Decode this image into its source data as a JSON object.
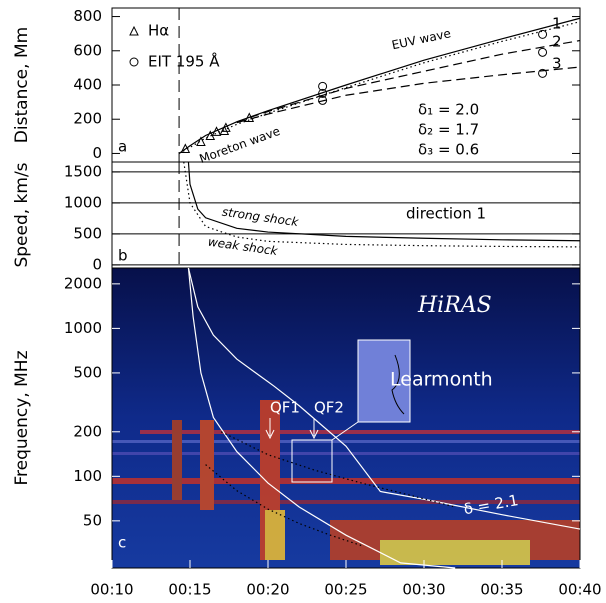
{
  "chart_data": [
    {
      "type": "line",
      "ylabel": "Distance, Mm",
      "xlim": [
        10,
        40
      ],
      "ylim": [
        -50,
        850
      ],
      "yticks": [
        0,
        200,
        400,
        600,
        800
      ],
      "vline": 14.3,
      "series": [
        {
          "name": "Hα",
          "marker": "triangle",
          "color": "#000",
          "x": [
            14.7,
            15.7,
            16.3,
            16.7,
            17.2,
            17.3,
            18.8
          ],
          "values": [
            29,
            70,
            105,
            129,
            134,
            152,
            210
          ]
        },
        {
          "name": "EIT 195 Å",
          "marker": "circle",
          "color": "#000",
          "x": [
            23.5,
            23.5,
            23.5,
            37.6,
            37.6,
            37.6
          ],
          "values": [
            392,
            351,
            310,
            696,
            591,
            468
          ]
        },
        {
          "style": "solid",
          "color": "#000",
          "x": [
            14.3,
            15,
            16,
            18,
            20,
            25,
            30,
            35,
            40
          ],
          "values": [
            0,
            45,
            105,
            185,
            250,
            400,
            545,
            670,
            790
          ]
        },
        {
          "style": "dotted",
          "color": "#000",
          "x": [
            14.3,
            15,
            16,
            18,
            20,
            25,
            30,
            35,
            40
          ],
          "values": [
            0,
            35,
            90,
            170,
            235,
            385,
            530,
            655,
            770
          ]
        },
        {
          "style": "dashed",
          "color": "#000",
          "x": [
            18,
            20,
            25,
            30,
            35,
            40
          ],
          "values": [
            185,
            245,
            380,
            480,
            580,
            660
          ]
        },
        {
          "style": "dashed",
          "color": "#000",
          "x": [
            18,
            20,
            25,
            30,
            35,
            40
          ],
          "values": [
            180,
            230,
            340,
            410,
            460,
            505
          ]
        }
      ],
      "annotations": [
        "EUV wave",
        "Moreton wave",
        "δ₁ = 2.0",
        "δ₂ = 1.7",
        "δ₃ = 0.6",
        "1",
        "2",
        "3",
        "a"
      ]
    },
    {
      "type": "line",
      "ylabel": "Speed, km/s",
      "xlim": [
        10,
        40
      ],
      "ylim": [
        -50,
        1660
      ],
      "yticks": [
        0,
        500,
        1000,
        1500
      ],
      "grid": true,
      "vline": 14.3,
      "series": [
        {
          "style": "solid",
          "color": "#000",
          "x": [
            14.9,
            15,
            15.5,
            16,
            18,
            20,
            25,
            30,
            35,
            40
          ],
          "values": [
            1660,
            1300,
            900,
            760,
            590,
            530,
            460,
            430,
            405,
            390
          ]
        },
        {
          "style": "dotted",
          "color": "#000",
          "x": [
            14.6,
            15,
            16,
            18,
            20,
            25,
            30,
            35,
            40
          ],
          "values": [
            1660,
            1000,
            620,
            450,
            380,
            330,
            310,
            298,
            290
          ]
        }
      ],
      "annotations": [
        "strong shock",
        "weak shock",
        "direction 1",
        "b"
      ]
    },
    {
      "type": "line",
      "ylabel": "Frequency, MHz",
      "yscale": "log",
      "xlim": [
        10,
        40
      ],
      "ylim": [
        24,
        2560
      ],
      "yticks": [
        50,
        100,
        200,
        500,
        1000,
        2000
      ],
      "xticks": [
        {
          "value": 10,
          "label": "00:10"
        },
        {
          "value": 15,
          "label": "00:15"
        },
        {
          "value": 20,
          "label": "00:20"
        },
        {
          "value": 25,
          "label": "00:25"
        },
        {
          "value": 30,
          "label": "00:30"
        },
        {
          "value": 35,
          "label": "00:35"
        },
        {
          "value": 40,
          "label": "00:40"
        }
      ],
      "series": [
        {
          "style": "solid",
          "color": "#fff",
          "x": [
            14.9,
            15.5,
            16.5,
            18,
            20.4,
            22,
            25,
            27.2,
            30,
            35,
            40
          ],
          "values": [
            2560,
            1400,
            900,
            620,
            406,
            300,
            160,
            79,
            70,
            55,
            44
          ]
        },
        {
          "style": "solid",
          "color": "#fff",
          "x": [
            14.9,
            15.2,
            15.7,
            16.5,
            18,
            20,
            22,
            25,
            28.5,
            32
          ],
          "values": [
            2560,
            1200,
            500,
            250,
            147,
            90,
            62,
            40,
            26,
            24
          ]
        },
        {
          "style": "dotted",
          "color": "#000",
          "x": [
            17,
            20,
            23,
            26,
            29,
            32
          ],
          "values": [
            200,
            140,
            110,
            90,
            75,
            62
          ]
        },
        {
          "style": "dotted",
          "color": "#000",
          "x": [
            16,
            18,
            20,
            22,
            24,
            26
          ],
          "values": [
            120,
            80,
            60,
            48,
            40,
            34
          ]
        }
      ],
      "annotations": [
        "HiRAS",
        "Learmonth",
        "QF1",
        "QF2",
        "δ = 2.1",
        "c"
      ]
    }
  ]
}
